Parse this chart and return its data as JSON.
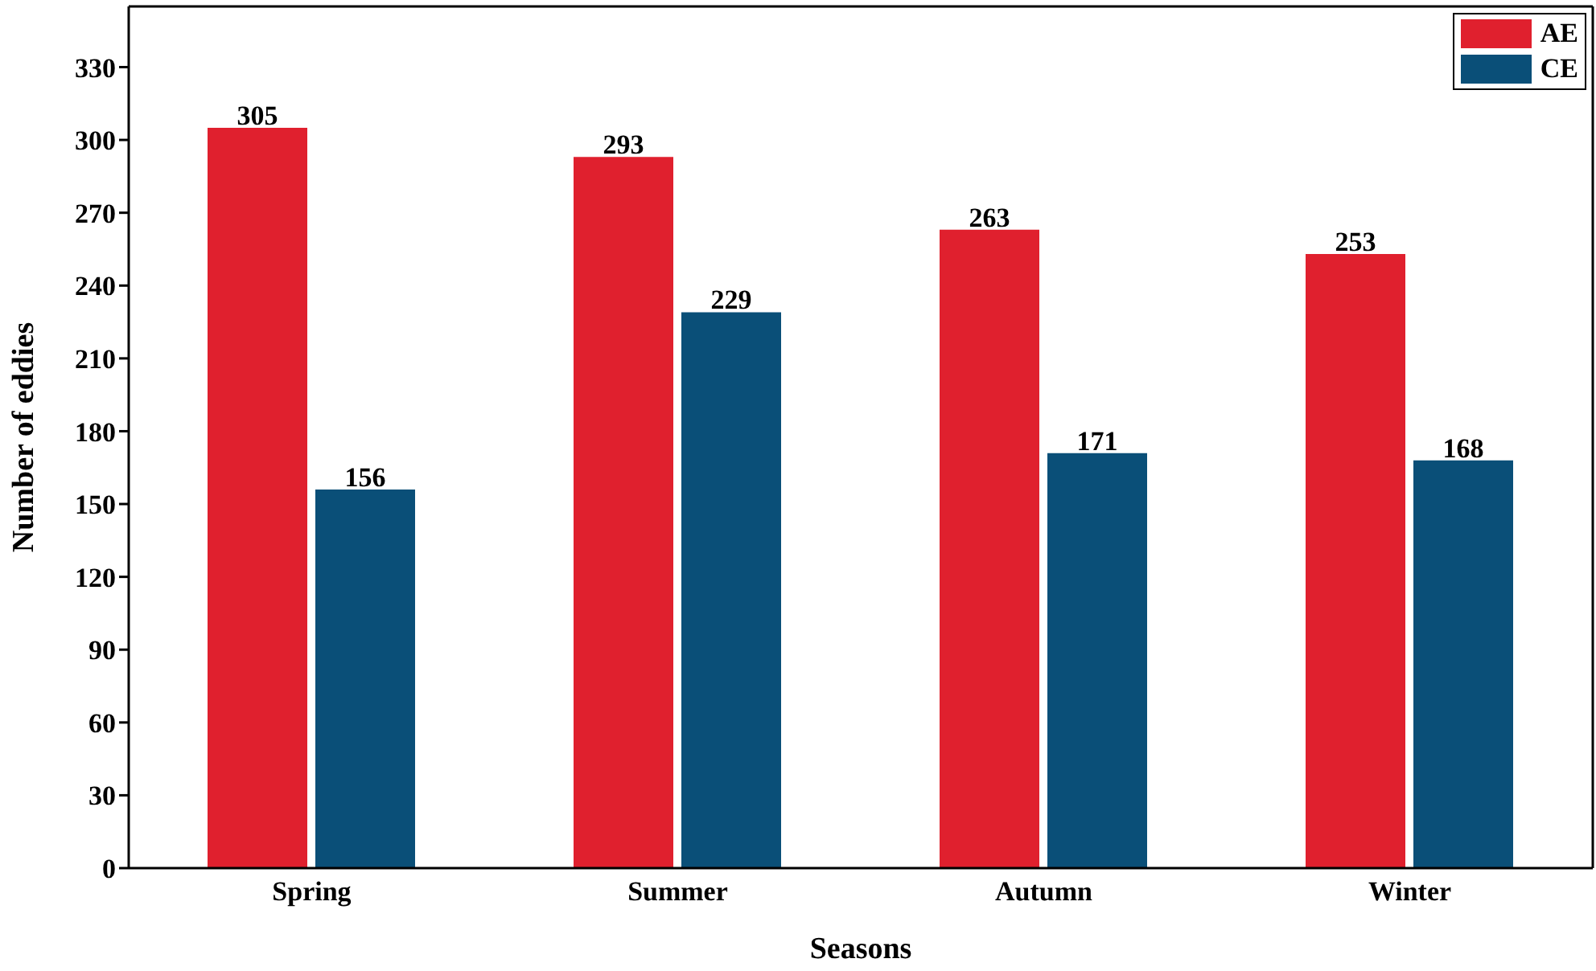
{
  "chart_data": {
    "type": "bar",
    "xlabel": "Seasons",
    "ylabel": "Number of eddies",
    "categories": [
      "Spring",
      "Summer",
      "Autumn",
      "Winter"
    ],
    "series": [
      {
        "name": "AE",
        "color": "#e0202e",
        "values": [
          305,
          293,
          263,
          253
        ]
      },
      {
        "name": "CE",
        "color": "#0a4f78",
        "values": [
          156,
          229,
          171,
          168
        ]
      }
    ],
    "ylim": [
      0,
      355
    ],
    "yticks": [
      0,
      30,
      60,
      90,
      120,
      150,
      180,
      210,
      240,
      270,
      300,
      330
    ],
    "data_labels": true,
    "legend": "top right"
  }
}
